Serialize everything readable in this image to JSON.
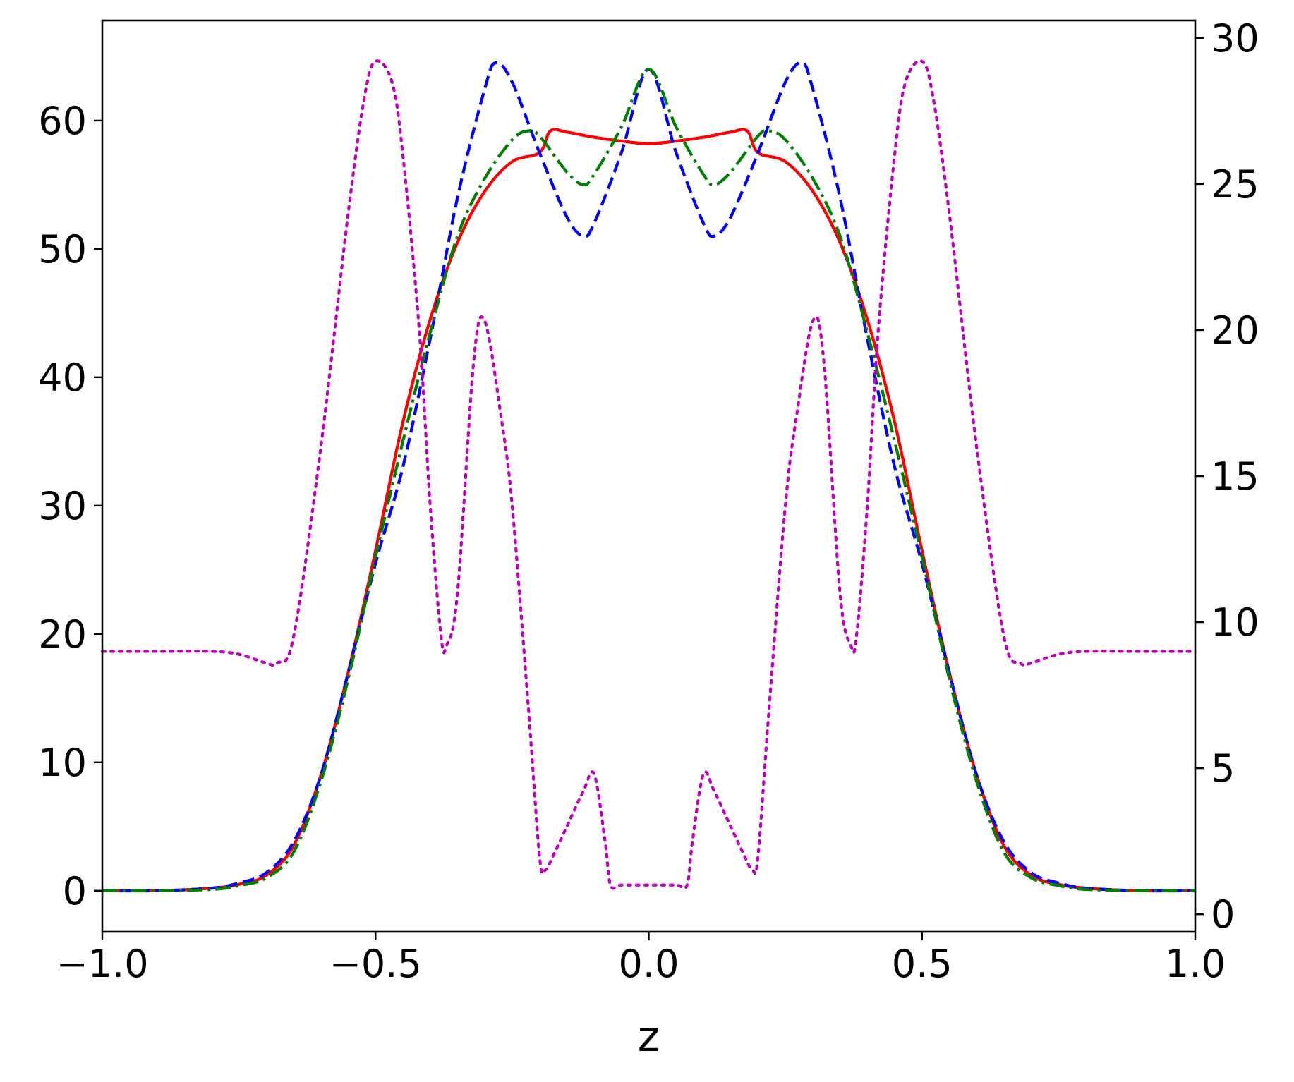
{
  "chart_data": {
    "type": "line",
    "title": "",
    "xlabel": "z",
    "ylabel": "",
    "y2label": "",
    "xlim": [
      -1.0,
      1.0
    ],
    "ylim": [
      -3.2,
      67.8
    ],
    "y2lim": [
      -0.6,
      30.6
    ],
    "grid": false,
    "legend": "none",
    "x_ticks": [
      {
        "value": -1.0,
        "label": "−1.0"
      },
      {
        "value": -0.5,
        "label": "−0.5"
      },
      {
        "value": 0.0,
        "label": "0.0"
      },
      {
        "value": 0.5,
        "label": "0.5"
      },
      {
        "value": 1.0,
        "label": "1.0"
      }
    ],
    "y_ticks": [
      {
        "value": 0,
        "label": "0"
      },
      {
        "value": 10,
        "label": "10"
      },
      {
        "value": 20,
        "label": "20"
      },
      {
        "value": 30,
        "label": "30"
      },
      {
        "value": 40,
        "label": "40"
      },
      {
        "value": 50,
        "label": "50"
      },
      {
        "value": 60,
        "label": "60"
      }
    ],
    "y2_ticks": [
      {
        "value": 0,
        "label": "0"
      },
      {
        "value": 5,
        "label": "5"
      },
      {
        "value": 10,
        "label": "10"
      },
      {
        "value": 15,
        "label": "15"
      },
      {
        "value": 20,
        "label": "20"
      },
      {
        "value": 25,
        "label": "25"
      },
      {
        "value": 30,
        "label": "30"
      }
    ],
    "series": [
      {
        "color": "#ff0000",
        "linestyle": "solid",
        "axis": "left",
        "x": [
          -1.0,
          -0.9,
          -0.8,
          -0.75,
          -0.7,
          -0.65,
          -0.6,
          -0.55,
          -0.5,
          -0.45,
          -0.4,
          -0.35,
          -0.3,
          -0.25,
          -0.2,
          -0.18,
          -0.15,
          -0.1,
          -0.05,
          0.0,
          0.05,
          0.1,
          0.15,
          0.18,
          0.2,
          0.25,
          0.3,
          0.35,
          0.4,
          0.45,
          0.5,
          0.55,
          0.6,
          0.65,
          0.7,
          0.75,
          0.8,
          0.9,
          1.0
        ],
        "y": [
          0.0,
          0.0,
          0.2,
          0.5,
          1.2,
          3.5,
          9.0,
          17.0,
          26.5,
          36.5,
          44.5,
          50.5,
          54.5,
          56.8,
          57.5,
          59.2,
          59.1,
          58.7,
          58.4,
          58.2,
          58.4,
          58.7,
          59.1,
          59.2,
          57.5,
          56.8,
          54.5,
          50.5,
          44.5,
          36.5,
          26.5,
          17.0,
          9.0,
          3.5,
          1.2,
          0.5,
          0.2,
          0.0,
          0.0
        ]
      },
      {
        "color": "#0000ff",
        "linestyle": "dashed",
        "axis": "left",
        "x": [
          -1.0,
          -0.9,
          -0.8,
          -0.75,
          -0.7,
          -0.65,
          -0.6,
          -0.55,
          -0.5,
          -0.45,
          -0.4,
          -0.35,
          -0.3,
          -0.28,
          -0.25,
          -0.2,
          -0.15,
          -0.12,
          -0.1,
          -0.05,
          0.0,
          0.05,
          0.1,
          0.12,
          0.15,
          0.2,
          0.25,
          0.28,
          0.3,
          0.35,
          0.4,
          0.45,
          0.5,
          0.55,
          0.6,
          0.65,
          0.7,
          0.75,
          0.8,
          0.9,
          1.0
        ],
        "y": [
          0.0,
          0.0,
          0.2,
          0.6,
          1.4,
          3.8,
          9.0,
          17.0,
          25.5,
          33.0,
          43.0,
          54.0,
          62.5,
          64.5,
          63.0,
          57.5,
          52.5,
          51.0,
          52.0,
          57.5,
          64.0,
          57.5,
          52.0,
          51.0,
          52.5,
          57.5,
          63.0,
          64.5,
          62.5,
          54.0,
          43.0,
          33.0,
          25.5,
          17.0,
          9.0,
          3.8,
          1.4,
          0.6,
          0.2,
          0.0,
          0.0
        ]
      },
      {
        "color": "#008000",
        "linestyle": "dashdot",
        "axis": "left",
        "x": [
          -1.0,
          -0.9,
          -0.8,
          -0.75,
          -0.7,
          -0.65,
          -0.6,
          -0.55,
          -0.5,
          -0.45,
          -0.4,
          -0.35,
          -0.3,
          -0.25,
          -0.22,
          -0.2,
          -0.15,
          -0.12,
          -0.1,
          -0.05,
          0.0,
          0.05,
          0.1,
          0.12,
          0.15,
          0.2,
          0.22,
          0.25,
          0.3,
          0.35,
          0.4,
          0.45,
          0.5,
          0.55,
          0.6,
          0.65,
          0.7,
          0.75,
          0.8,
          0.9,
          1.0
        ],
        "y": [
          0.0,
          0.0,
          0.1,
          0.4,
          1.0,
          3.0,
          8.5,
          16.5,
          26.0,
          35.0,
          43.5,
          51.0,
          55.5,
          58.5,
          59.2,
          58.8,
          56.0,
          55.0,
          55.8,
          59.5,
          64.0,
          59.5,
          55.8,
          55.0,
          56.0,
          58.8,
          59.2,
          58.5,
          55.5,
          51.0,
          43.5,
          35.0,
          26.0,
          16.5,
          8.5,
          3.0,
          1.0,
          0.4,
          0.1,
          0.0,
          0.0
        ]
      },
      {
        "color": "#bf00bf",
        "linestyle": "dotted",
        "axis": "right",
        "x": [
          -1.0,
          -0.9,
          -0.8,
          -0.75,
          -0.7,
          -0.68,
          -0.65,
          -0.6,
          -0.55,
          -0.52,
          -0.5,
          -0.47,
          -0.45,
          -0.42,
          -0.4,
          -0.38,
          -0.37,
          -0.35,
          -0.32,
          -0.3,
          -0.27,
          -0.25,
          -0.22,
          -0.2,
          -0.19,
          -0.17,
          -0.15,
          -0.12,
          -0.1,
          -0.08,
          -0.07,
          -0.05,
          0.0,
          0.05,
          0.07,
          0.08,
          0.1,
          0.12,
          0.15,
          0.17,
          0.19,
          0.2,
          0.22,
          0.25,
          0.27,
          0.3,
          0.32,
          0.35,
          0.37,
          0.38,
          0.4,
          0.42,
          0.45,
          0.47,
          0.5,
          0.52,
          0.55,
          0.6,
          0.65,
          0.68,
          0.7,
          0.75,
          0.8,
          0.9,
          1.0
        ],
        "y": [
          9.0,
          9.0,
          9.0,
          8.9,
          8.6,
          8.6,
          9.5,
          16.0,
          24.0,
          28.0,
          29.2,
          28.5,
          26.0,
          20.0,
          14.0,
          9.5,
          9.2,
          11.0,
          19.0,
          20.3,
          17.0,
          14.0,
          7.0,
          2.0,
          1.5,
          2.2,
          3.0,
          4.2,
          4.8,
          2.5,
          1.0,
          1.0,
          1.0,
          1.0,
          1.0,
          2.5,
          4.8,
          4.2,
          3.0,
          2.2,
          1.5,
          2.0,
          7.0,
          14.0,
          17.0,
          20.3,
          19.0,
          11.0,
          9.2,
          9.5,
          14.0,
          20.0,
          26.0,
          28.5,
          29.2,
          28.0,
          24.0,
          16.0,
          9.5,
          8.6,
          8.6,
          8.9,
          9.0,
          9.0,
          9.0
        ]
      }
    ]
  }
}
